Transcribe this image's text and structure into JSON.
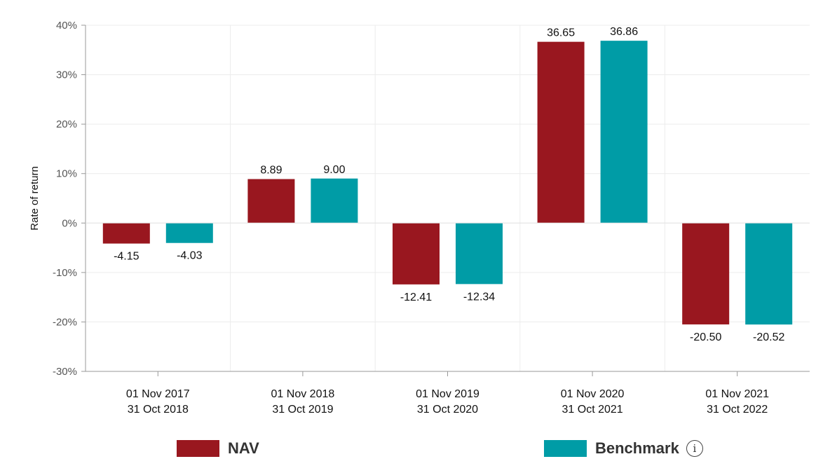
{
  "chart_data": {
    "type": "bar",
    "categories": [
      [
        "01 Nov 2017",
        "31 Oct 2018"
      ],
      [
        "01 Nov 2018",
        "31 Oct 2019"
      ],
      [
        "01 Nov 2019",
        "31 Oct 2020"
      ],
      [
        "01 Nov 2020",
        "31 Oct 2021"
      ],
      [
        "01 Nov 2021",
        "31 Oct 2022"
      ]
    ],
    "series": [
      {
        "name": "NAV",
        "color": "#99171f",
        "values": [
          -4.15,
          8.89,
          -12.41,
          36.65,
          -20.5
        ],
        "labels": [
          "-4.15",
          "8.89",
          "-12.41",
          "36.65",
          "-20.50"
        ]
      },
      {
        "name": "Benchmark",
        "color": "#009ca6",
        "values": [
          -4.03,
          9.0,
          -12.34,
          36.86,
          -20.52
        ],
        "labels": [
          "-4.03",
          "9.00",
          "-12.34",
          "36.86",
          "-20.52"
        ]
      }
    ],
    "ylabel": "Rate of return",
    "ylim": [
      -30,
      40
    ],
    "yticks": [
      40,
      30,
      20,
      10,
      0,
      -10,
      -20,
      -30
    ],
    "ytick_labels": [
      "40%",
      "30%",
      "20%",
      "10%",
      "0%",
      "-10%",
      "-20%",
      "-30%"
    ],
    "grid": true,
    "legend_position": "bottom"
  },
  "legend": {
    "nav_label": "NAV",
    "benchmark_label": "Benchmark",
    "info_icon": "info-icon"
  }
}
